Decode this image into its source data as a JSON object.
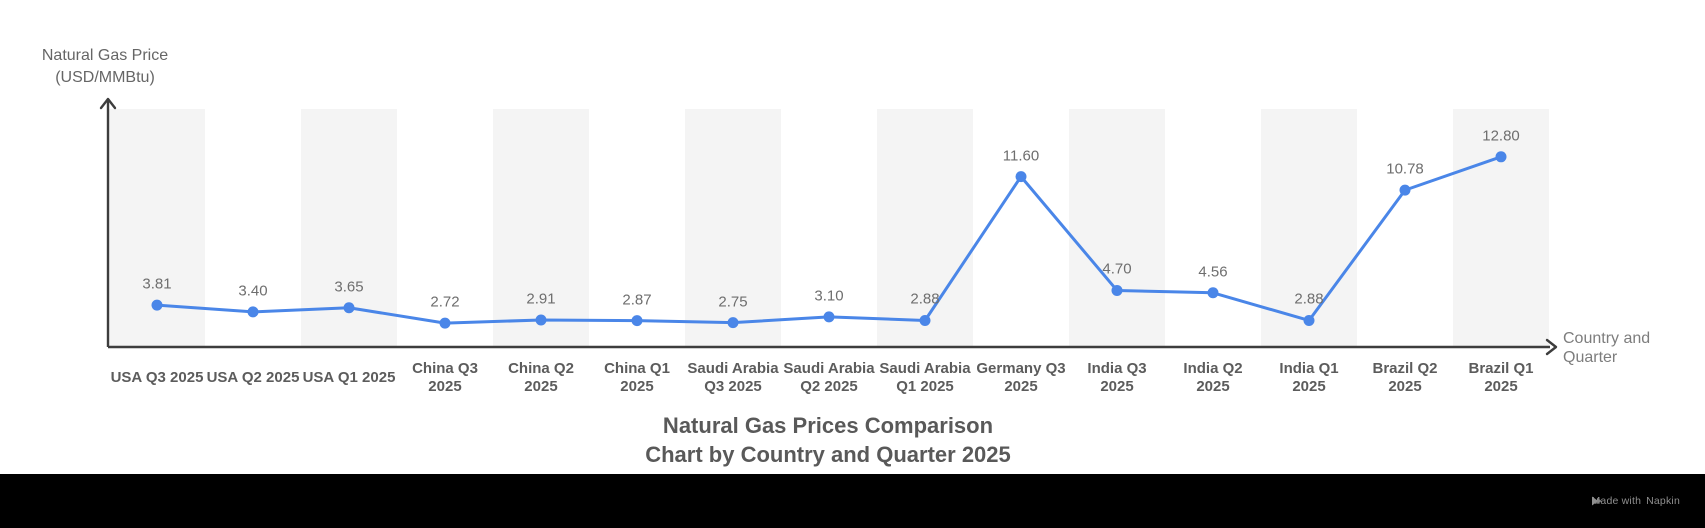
{
  "title": {
    "line1": "Natural Gas Prices Comparison",
    "line2": "Chart by Country and Quarter 2025"
  },
  "y_axis": {
    "title_lines": [
      "Natural Gas Price",
      "(USD/MMBtu)"
    ]
  },
  "x_axis": {
    "title_lines": [
      "Country and",
      "Quarter"
    ]
  },
  "footer": {
    "made_with": "Made with",
    "brand": "Napkin"
  },
  "colors": {
    "line": "#4A86E8",
    "marker": "#4A86E8",
    "bar_stripe": "#F4F4F4",
    "axis": "#3D3D3D",
    "value_label": "#6E6E6E",
    "tick_label": "#5C5C5C",
    "title": "#595959",
    "footer_bg": "#000000",
    "footer_text": "#8F8F8F"
  },
  "chart_data": {
    "type": "line",
    "title": "Natural Gas Prices Comparison Chart by Country and Quarter 2025",
    "xlabel": "Country and Quarter",
    "ylabel": "Natural Gas Price (USD/MMBtu)",
    "legend": "none",
    "grid": false,
    "striped_column_background": true,
    "marker_shape": "circle",
    "categories": [
      "USA Q3 2025",
      "USA Q2 2025",
      "USA Q1 2025",
      "China Q3 2025",
      "China Q2 2025",
      "China Q1 2025",
      "Saudi Arabia Q3 2025",
      "Saudi Arabia Q2 2025",
      "Saudi Arabia Q1 2025",
      "Germany Q3 2025",
      "India Q3 2025",
      "India Q2 2025",
      "India Q1 2025",
      "Brazil Q2 2025",
      "Brazil Q1 2025"
    ],
    "category_label_lines": [
      [
        "USA Q3 2025"
      ],
      [
        "USA Q2 2025"
      ],
      [
        "USA Q1 2025"
      ],
      [
        "China Q3",
        "2025"
      ],
      [
        "China Q2",
        "2025"
      ],
      [
        "China Q1",
        "2025"
      ],
      [
        "Saudi Arabia",
        "Q3 2025"
      ],
      [
        "Saudi Arabia",
        "Q2 2025"
      ],
      [
        "Saudi Arabia",
        "Q1 2025"
      ],
      [
        "Germany Q3",
        "2025"
      ],
      [
        "India Q3",
        "2025"
      ],
      [
        "India Q2",
        "2025"
      ],
      [
        "India Q1",
        "2025"
      ],
      [
        "Brazil Q2",
        "2025"
      ],
      [
        "Brazil Q1",
        "2025"
      ]
    ],
    "values": [
      3.81,
      3.4,
      3.65,
      2.72,
      2.91,
      2.87,
      2.75,
      3.1,
      2.88,
      11.6,
      4.7,
      4.56,
      2.88,
      10.78,
      12.8
    ],
    "value_labels": [
      "3.81",
      "3.40",
      "3.65",
      "2.72",
      "2.91",
      "2.87",
      "2.75",
      "3.10",
      "2.88",
      "11.60",
      "4.70",
      "4.56",
      "2.88",
      "10.78",
      "12.80"
    ]
  }
}
